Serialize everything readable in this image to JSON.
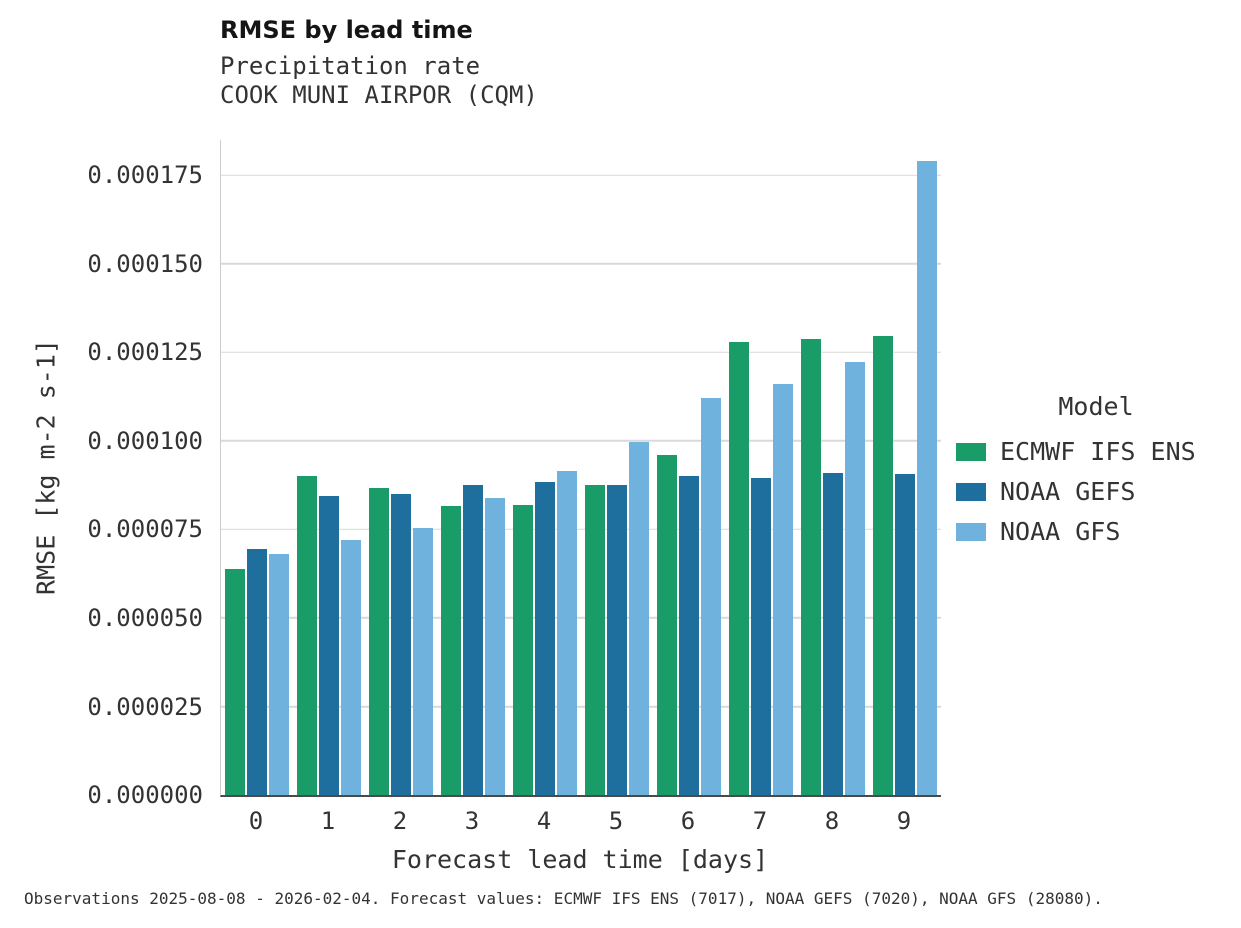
{
  "title": "RMSE by lead time",
  "subtitle1": "Precipitation rate",
  "subtitle2": "COOK MUNI AIRPOR (CQM)",
  "footer": "Observations 2025-08-08 - 2026-02-04. Forecast values: ECMWF IFS ENS (7017), NOAA GEFS (7020), NOAA GFS (28080).",
  "legend": {
    "title": "Model"
  },
  "colors": {
    "ecmwf_green": "#1a9c68",
    "gefs_blue": "#1e6f9e",
    "gfs_lightblue": "#6fb2de",
    "gridline": "#d9d9d9"
  },
  "chart_data": {
    "type": "bar",
    "title": "RMSE by lead time",
    "subtitle": [
      "Precipitation rate",
      "COOK MUNI AIRPOR (CQM)"
    ],
    "xlabel": "Forecast lead time [days]",
    "ylabel": "RMSE [kg m-2 s-1]",
    "categories": [
      "0",
      "1",
      "2",
      "3",
      "4",
      "5",
      "6",
      "7",
      "8",
      "9"
    ],
    "series": [
      {
        "name": "ECMWF IFS ENS",
        "color": "#1a9c68",
        "values": [
          6.38e-05,
          9e-05,
          8.67e-05,
          8.15e-05,
          8.2e-05,
          8.75e-05,
          9.6e-05,
          0.000128,
          0.0001287,
          0.0001297
        ]
      },
      {
        "name": "NOAA GEFS",
        "color": "#1e6f9e",
        "values": [
          6.95e-05,
          8.45e-05,
          8.5e-05,
          8.75e-05,
          8.85e-05,
          8.75e-05,
          9e-05,
          8.95e-05,
          9.1e-05,
          9.07e-05
        ]
      },
      {
        "name": "NOAA GFS",
        "color": "#6fb2de",
        "values": [
          6.8e-05,
          7.2e-05,
          7.53e-05,
          8.38e-05,
          9.15e-05,
          9.97e-05,
          0.000112,
          0.000116,
          0.0001223,
          0.000179
        ]
      }
    ],
    "ylim": [
      0,
      0.000185
    ],
    "yticks": [
      0,
      2.5e-05,
      5e-05,
      7.5e-05,
      0.0001,
      0.000125,
      0.00015,
      0.000175
    ],
    "grid": true,
    "legend_title": "Model",
    "legend_position": "right"
  }
}
